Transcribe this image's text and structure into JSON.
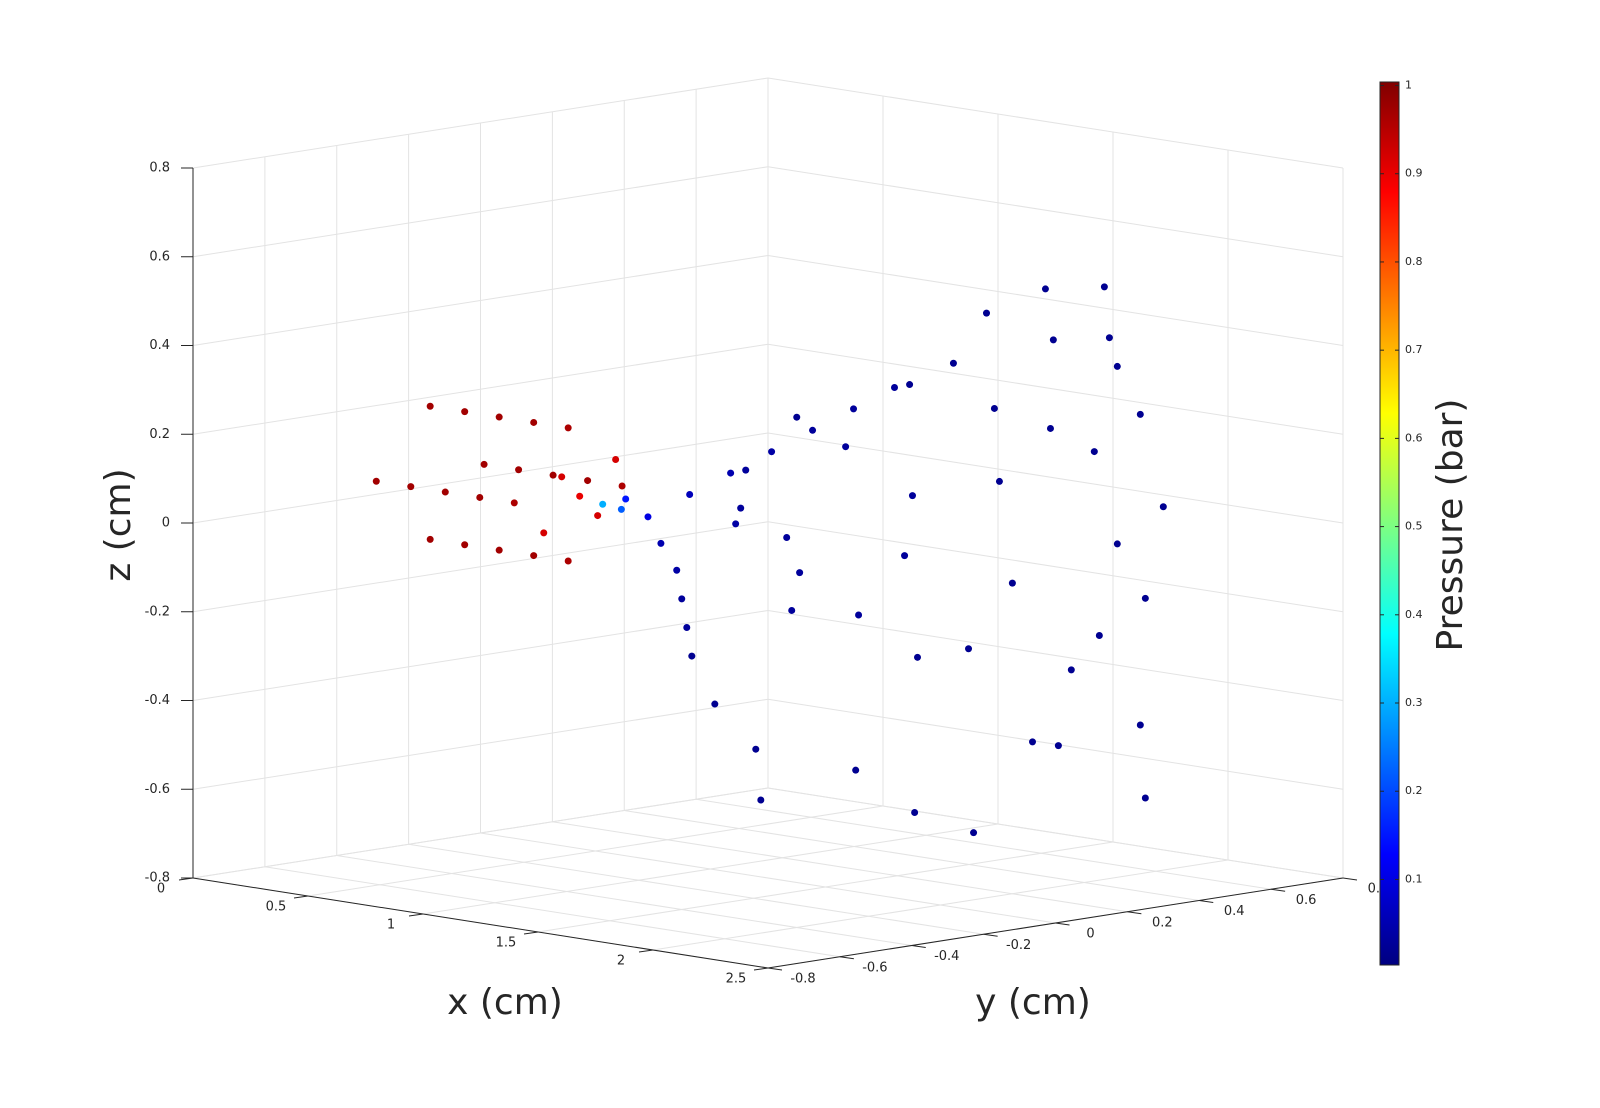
{
  "chart_data": {
    "type": "scatter3d",
    "xlabel": "x (cm)",
    "ylabel": "y (cm)",
    "zlabel": "z (cm)",
    "colorbar_label": "Pressure (bar)",
    "colormap": "jet",
    "grid": true,
    "xlim": [
      0,
      2.5
    ],
    "xticks": [
      0,
      0.5,
      1,
      1.5,
      2,
      2.5
    ],
    "ylim": [
      -0.8,
      0.8
    ],
    "yticks": [
      -0.8,
      -0.6,
      -0.4,
      -0.2,
      0,
      0.2,
      0.4,
      0.6,
      0.8
    ],
    "zlim": [
      -0.8,
      0.8
    ],
    "zticks": [
      -0.8,
      -0.6,
      -0.4,
      -0.2,
      0,
      0.2,
      0.4,
      0.6,
      0.8
    ],
    "clim": [
      0.003,
      1.004
    ],
    "cticks": [
      0.1,
      0.2,
      0.3,
      0.4,
      0.5,
      0.6,
      0.7,
      0.8,
      0.9,
      1
    ],
    "x": [
      0.25,
      0.25,
      0.25,
      0.25,
      0.4,
      0.4,
      0.4,
      0.4,
      0.55,
      0.55,
      0.55,
      0.55,
      0.7,
      0.7,
      0.7,
      0.7,
      0.85,
      0.85,
      0.85,
      0.85,
      0.9,
      0.9,
      0.9,
      0.9,
      0.9,
      1.0,
      1.05,
      1.1,
      1.15,
      1.3,
      1.3,
      1.4,
      1.4,
      1.5,
      1.5,
      1.5,
      1.6,
      1.6,
      1.6,
      1.7,
      1.7,
      1.7,
      1.7,
      1.8,
      1.8,
      1.8,
      1.8,
      1.8,
      1.9,
      1.9,
      1.9,
      1.9,
      1.9,
      2.0,
      2.0,
      2.0,
      2.0,
      2.0,
      2.1,
      2.1,
      2.1,
      2.1,
      2.1,
      2.2,
      2.2,
      2.2,
      2.2,
      2.2,
      2.3,
      2.3,
      2.3,
      2.3,
      2.3,
      2.4,
      2.4,
      2.4,
      2.4,
      2.4,
      2.5,
      2.5,
      2.5,
      2.5
    ],
    "y": [
      -0.3,
      -0.3,
      -0.45,
      -0.15,
      -0.3,
      -0.3,
      -0.45,
      -0.15,
      -0.3,
      -0.3,
      -0.45,
      -0.15,
      -0.3,
      -0.3,
      -0.45,
      -0.15,
      -0.3,
      -0.3,
      -0.45,
      -0.15,
      -0.3,
      -0.4,
      -0.2,
      -0.35,
      -0.25,
      -0.3,
      -0.28,
      -0.3,
      -0.27,
      -0.25,
      -0.33,
      -0.2,
      -0.35,
      -0.15,
      -0.4,
      -0.25,
      -0.1,
      -0.45,
      -0.3,
      -0.05,
      -0.5,
      -0.2,
      -0.35,
      0.0,
      -0.5,
      -0.1,
      -0.3,
      0.05,
      0.1,
      -0.45,
      -0.2,
      0.0,
      -0.35,
      0.15,
      -0.4,
      0.2,
      -0.1,
      -0.5,
      0.25,
      -0.3,
      0.1,
      -0.15,
      0.3,
      0.3,
      -0.2,
      0.0,
      0.2,
      -0.05,
      0.3,
      0.1,
      -0.1,
      0.3,
      0.25,
      0.3,
      0.3,
      0.05,
      0.2,
      0.0,
      0.3,
      0.25,
      0.15,
      0.25
    ],
    "z": [
      0.22,
      -0.08,
      0.07,
      0.07,
      0.22,
      -0.08,
      0.07,
      0.07,
      0.22,
      -0.08,
      0.07,
      0.07,
      0.22,
      -0.08,
      0.07,
      0.07,
      0.22,
      -0.08,
      0.07,
      0.07,
      0.07,
      0.0,
      0.14,
      0.12,
      0.02,
      0.06,
      0.05,
      0.08,
      0.04,
      0.1,
      0.0,
      0.15,
      -0.05,
      0.2,
      -0.1,
      0.05,
      0.25,
      -0.15,
      0.1,
      0.3,
      -0.2,
      -0.05,
      0.2,
      0.35,
      -0.3,
      -0.15,
      0.05,
      0.1,
      0.4,
      -0.4,
      0.25,
      -0.25,
      -0.1,
      0.3,
      0.35,
      -0.1,
      0.0,
      -0.5,
      0.45,
      -0.45,
      0.15,
      0.4,
      -0.3,
      0.2,
      -0.55,
      0.55,
      -0.45,
      -0.2,
      0.0,
      0.6,
      -0.6,
      0.4,
      -0.2,
      0.3,
      -0.4,
      0.3,
      0.6,
      -0.4,
      0.1,
      -0.55,
      0.5,
      -0.1
    ],
    "values": [
      0.97,
      0.97,
      0.97,
      0.97,
      0.97,
      0.97,
      0.97,
      0.97,
      0.97,
      0.97,
      0.97,
      0.97,
      0.97,
      0.97,
      0.97,
      0.97,
      0.96,
      0.96,
      0.96,
      0.96,
      0.9,
      0.92,
      0.92,
      0.92,
      0.92,
      0.3,
      0.22,
      0.15,
      0.1,
      0.06,
      0.05,
      0.05,
      0.04,
      0.04,
      0.03,
      0.04,
      0.03,
      0.03,
      0.03,
      0.03,
      0.02,
      0.03,
      0.03,
      0.03,
      0.02,
      0.03,
      0.03,
      0.03,
      0.02,
      0.02,
      0.03,
      0.02,
      0.03,
      0.02,
      0.02,
      0.02,
      0.03,
      0.02,
      0.02,
      0.02,
      0.02,
      0.02,
      0.02,
      0.02,
      0.02,
      0.02,
      0.02,
      0.02,
      0.02,
      0.02,
      0.02,
      0.02,
      0.02,
      0.02,
      0.02,
      0.02,
      0.02,
      0.02,
      0.02,
      0.02,
      0.02,
      0.02
    ]
  }
}
